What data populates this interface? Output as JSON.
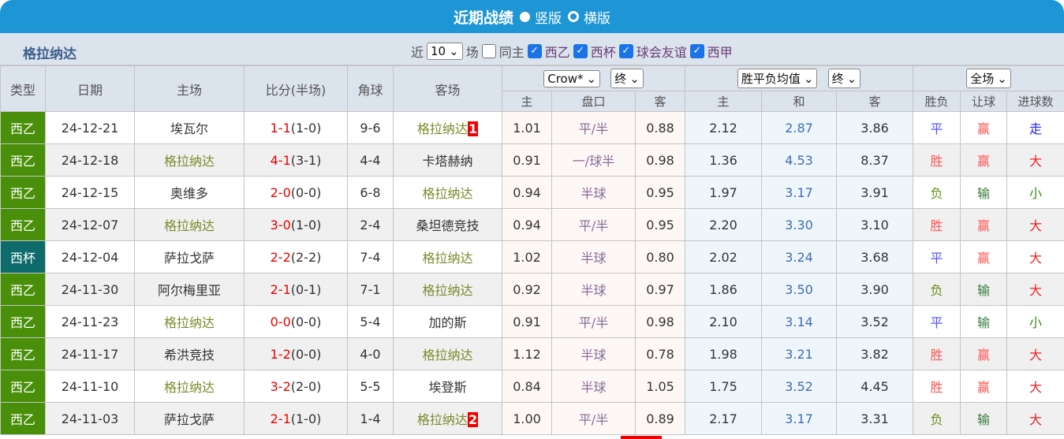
{
  "title": "近期战绩",
  "view_options": [
    "竖版",
    "横版"
  ],
  "team": "格拉纳达",
  "filter": {
    "near": "近",
    "count": "10",
    "unit": "场",
    "same_host": "同主",
    "leagues": [
      "西乙",
      "西杯",
      "球会友谊",
      "西甲"
    ]
  },
  "headers": {
    "type": "类型",
    "date": "日期",
    "home": "主场",
    "score": "比分(半场)",
    "corner": "角球",
    "away": "客场",
    "ah_company": "Crow*",
    "ah_time": "终",
    "eu_type": "胜平负均值",
    "eu_time": "终",
    "scope": "全场",
    "ah_sub": [
      "主",
      "盘口",
      "客"
    ],
    "eu_sub": [
      "主",
      "和",
      "客"
    ],
    "res_sub": [
      "胜负",
      "让球",
      "进球数"
    ]
  },
  "colors": {
    "title_bar": "#1e96d5",
    "league_cell": "#4a8f0a",
    "cup_cell": "#0e6b6b",
    "win": "#f66",
    "draw": "#66f",
    "loss": "#6b8e23"
  },
  "rows": [
    {
      "type": "西乙",
      "date": "24-12-21",
      "home": "埃瓦尔",
      "score": "1-1",
      "half": "(1-0)",
      "corner": "9-6",
      "away": "格拉纳达",
      "tag": "1",
      "ah": [
        "1.01",
        "平/半",
        "0.88"
      ],
      "eu": [
        "2.12",
        "2.87",
        "3.86"
      ],
      "res": [
        "平",
        "赢",
        "走"
      ]
    },
    {
      "type": "西乙",
      "date": "24-12-18",
      "home": "格拉纳达",
      "score": "4-1",
      "half": "(3-1)",
      "corner": "4-4",
      "away": "卡塔赫纳",
      "tag": "",
      "ah": [
        "0.91",
        "一/球半",
        "0.98"
      ],
      "eu": [
        "1.36",
        "4.53",
        "8.37"
      ],
      "res": [
        "胜",
        "赢",
        "大"
      ]
    },
    {
      "type": "西乙",
      "date": "24-12-15",
      "home": "奥维多",
      "score": "2-0",
      "half": "(0-0)",
      "corner": "6-8",
      "away": "格拉纳达",
      "tag": "",
      "ah": [
        "0.94",
        "半球",
        "0.95"
      ],
      "eu": [
        "1.97",
        "3.17",
        "3.91"
      ],
      "res": [
        "负",
        "输",
        "小"
      ]
    },
    {
      "type": "西乙",
      "date": "24-12-07",
      "home": "格拉纳达",
      "score": "3-0",
      "half": "(1-0)",
      "corner": "2-4",
      "away": "桑坦德竞技",
      "tag": "",
      "ah": [
        "0.94",
        "平/半",
        "0.95"
      ],
      "eu": [
        "2.20",
        "3.30",
        "3.10"
      ],
      "res": [
        "胜",
        "赢",
        "大"
      ]
    },
    {
      "type": "西杯",
      "date": "24-12-04",
      "home": "萨拉戈萨",
      "score": "2-2",
      "half": "(2-2)",
      "corner": "7-4",
      "away": "格拉纳达",
      "tag": "",
      "ah": [
        "1.02",
        "半球",
        "0.80"
      ],
      "eu": [
        "2.02",
        "3.24",
        "3.68"
      ],
      "res": [
        "平",
        "赢",
        "大"
      ]
    },
    {
      "type": "西乙",
      "date": "24-11-30",
      "home": "阿尔梅里亚",
      "score": "2-1",
      "half": "(0-1)",
      "corner": "7-1",
      "away": "格拉纳达",
      "tag": "",
      "ah": [
        "0.92",
        "半球",
        "0.97"
      ],
      "eu": [
        "1.86",
        "3.50",
        "3.90"
      ],
      "res": [
        "负",
        "输",
        "大"
      ]
    },
    {
      "type": "西乙",
      "date": "24-11-23",
      "home": "格拉纳达",
      "score": "0-0",
      "half": "(0-0)",
      "corner": "5-4",
      "away": "加的斯",
      "tag": "",
      "ah": [
        "0.91",
        "平/半",
        "0.98"
      ],
      "eu": [
        "2.10",
        "3.14",
        "3.52"
      ],
      "res": [
        "平",
        "输",
        "小"
      ]
    },
    {
      "type": "西乙",
      "date": "24-11-17",
      "home": "希洪竞技",
      "score": "1-2",
      "half": "(0-0)",
      "corner": "4-0",
      "away": "格拉纳达",
      "tag": "",
      "ah": [
        "1.12",
        "半球",
        "0.78"
      ],
      "eu": [
        "1.98",
        "3.21",
        "3.82"
      ],
      "res": [
        "胜",
        "赢",
        "大"
      ]
    },
    {
      "type": "西乙",
      "date": "24-11-10",
      "home": "格拉纳达",
      "score": "3-2",
      "half": "(2-0)",
      "corner": "5-5",
      "away": "埃登斯",
      "tag": "",
      "ah": [
        "0.84",
        "半球",
        "1.05"
      ],
      "eu": [
        "1.75",
        "3.52",
        "4.45"
      ],
      "res": [
        "胜",
        "赢",
        "大"
      ]
    },
    {
      "type": "西乙",
      "date": "24-11-03",
      "home": "萨拉戈萨",
      "score": "2-1",
      "half": "(1-0)",
      "corner": "1-4",
      "away": "格拉纳达",
      "tag": "2",
      "ah": [
        "1.00",
        "平/半",
        "0.89"
      ],
      "eu": [
        "2.17",
        "3.17",
        "3.31"
      ],
      "res": [
        "负",
        "输",
        "大"
      ]
    }
  ]
}
